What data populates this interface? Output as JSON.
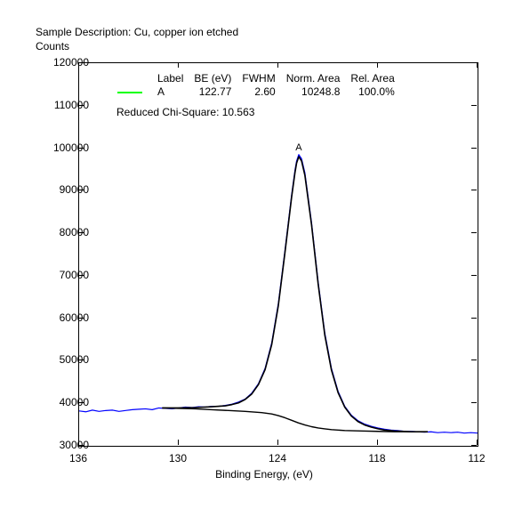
{
  "title_line1": "Sample Description:  Cu, copper ion etched",
  "title_line2": "Counts",
  "xlabel": "Binding Energy, (eV)",
  "x_axis": {
    "min": 112,
    "max": 136,
    "ticks": [
      136,
      130,
      124,
      118,
      112
    ]
  },
  "y_axis": {
    "min": 30000,
    "max": 120000,
    "ticks": [
      30000,
      40000,
      50000,
      60000,
      70000,
      80000,
      90000,
      100000,
      110000,
      120000
    ]
  },
  "legend": {
    "headers": [
      "Label",
      "BE (eV)",
      "FWHM",
      "Norm. Area",
      "Rel. Area"
    ],
    "rows": [
      {
        "swatch_color": "#00ff00",
        "label": "A",
        "be": "122.77",
        "fwhm": "2.60",
        "norm_area": "10248.8",
        "rel_area": "100.0%"
      }
    ]
  },
  "chi_square_label": "Reduced Chi-Square: 10.563",
  "peak_marker": {
    "label": "A",
    "x": 122.77
  },
  "colors": {
    "data_line": "#0000ff",
    "fit_line": "#000000",
    "background_line": "#000000",
    "axis": "#000000",
    "plot_bg": "#ffffff"
  },
  "line_widths": {
    "data": 1.2,
    "fit": 1.6,
    "background": 1.4
  },
  "series": {
    "data_blue": [
      [
        136.0,
        38200
      ],
      [
        135.6,
        38000
      ],
      [
        135.2,
        38400
      ],
      [
        134.8,
        38100
      ],
      [
        134.4,
        38300
      ],
      [
        134.0,
        38400
      ],
      [
        133.6,
        38100
      ],
      [
        133.2,
        38300
      ],
      [
        132.8,
        38500
      ],
      [
        132.4,
        38600
      ],
      [
        132.0,
        38700
      ],
      [
        131.6,
        38500
      ],
      [
        131.2,
        38900
      ],
      [
        130.8,
        38800
      ],
      [
        130.4,
        38700
      ],
      [
        130.0,
        38900
      ],
      [
        129.6,
        39100
      ],
      [
        129.2,
        39000
      ],
      [
        128.8,
        39200
      ],
      [
        128.4,
        39100
      ],
      [
        128.0,
        39300
      ],
      [
        127.6,
        39300
      ],
      [
        127.2,
        39500
      ],
      [
        126.8,
        39800
      ],
      [
        126.4,
        40300
      ],
      [
        126.0,
        41000
      ],
      [
        125.6,
        42400
      ],
      [
        125.2,
        44600
      ],
      [
        124.8,
        48200
      ],
      [
        124.4,
        54200
      ],
      [
        124.0,
        63500
      ],
      [
        123.6,
        76000
      ],
      [
        123.2,
        89000
      ],
      [
        123.0,
        94800
      ],
      [
        122.9,
        97000
      ],
      [
        122.77,
        98500
      ],
      [
        122.6,
        97500
      ],
      [
        122.4,
        94200
      ],
      [
        122.0,
        82500
      ],
      [
        121.6,
        68500
      ],
      [
        121.2,
        56500
      ],
      [
        120.8,
        48200
      ],
      [
        120.4,
        42800
      ],
      [
        120.0,
        39300
      ],
      [
        119.6,
        37200
      ],
      [
        119.2,
        35900
      ],
      [
        118.8,
        35100
      ],
      [
        118.4,
        34600
      ],
      [
        118.0,
        34200
      ],
      [
        117.6,
        33900
      ],
      [
        117.2,
        33700
      ],
      [
        116.8,
        33600
      ],
      [
        116.4,
        33400
      ],
      [
        116.0,
        33400
      ],
      [
        115.6,
        33300
      ],
      [
        115.2,
        33200
      ],
      [
        114.8,
        33300
      ],
      [
        114.4,
        33100
      ],
      [
        114.0,
        33200
      ],
      [
        113.6,
        33100
      ],
      [
        113.2,
        33200
      ],
      [
        112.8,
        33000
      ],
      [
        112.4,
        33100
      ],
      [
        112.0,
        33000
      ]
    ],
    "fit_black": [
      [
        131.0,
        38900
      ],
      [
        130.0,
        38900
      ],
      [
        129.0,
        39000
      ],
      [
        128.0,
        39200
      ],
      [
        127.2,
        39400
      ],
      [
        126.8,
        39700
      ],
      [
        126.4,
        40100
      ],
      [
        126.0,
        40900
      ],
      [
        125.6,
        42200
      ],
      [
        125.2,
        44400
      ],
      [
        124.8,
        47900
      ],
      [
        124.4,
        53800
      ],
      [
        124.0,
        63000
      ],
      [
        123.6,
        75500
      ],
      [
        123.2,
        88500
      ],
      [
        123.0,
        94200
      ],
      [
        122.9,
        96500
      ],
      [
        122.77,
        98000
      ],
      [
        122.6,
        97000
      ],
      [
        122.4,
        93600
      ],
      [
        122.0,
        82000
      ],
      [
        121.6,
        68000
      ],
      [
        121.2,
        56000
      ],
      [
        120.8,
        47800
      ],
      [
        120.4,
        42500
      ],
      [
        120.0,
        39100
      ],
      [
        119.6,
        37000
      ],
      [
        119.2,
        35700
      ],
      [
        118.8,
        34900
      ],
      [
        118.4,
        34400
      ],
      [
        118.0,
        34000
      ],
      [
        117.6,
        33700
      ],
      [
        117.0,
        33500
      ],
      [
        116.0,
        33300
      ],
      [
        115.0,
        33300
      ]
    ],
    "background_black": [
      [
        131.0,
        38900
      ],
      [
        130.0,
        38800
      ],
      [
        129.0,
        38700
      ],
      [
        128.0,
        38500
      ],
      [
        127.0,
        38300
      ],
      [
        126.0,
        38100
      ],
      [
        125.0,
        37800
      ],
      [
        124.4,
        37500
      ],
      [
        124.0,
        37100
      ],
      [
        123.6,
        36600
      ],
      [
        123.2,
        36000
      ],
      [
        122.8,
        35400
      ],
      [
        122.4,
        34900
      ],
      [
        122.0,
        34500
      ],
      [
        121.6,
        34200
      ],
      [
        121.2,
        34000
      ],
      [
        120.8,
        33800
      ],
      [
        120.4,
        33700
      ],
      [
        120.0,
        33600
      ],
      [
        119.0,
        33500
      ],
      [
        118.0,
        33400
      ],
      [
        117.0,
        33300
      ],
      [
        116.0,
        33300
      ],
      [
        115.0,
        33300
      ]
    ]
  }
}
